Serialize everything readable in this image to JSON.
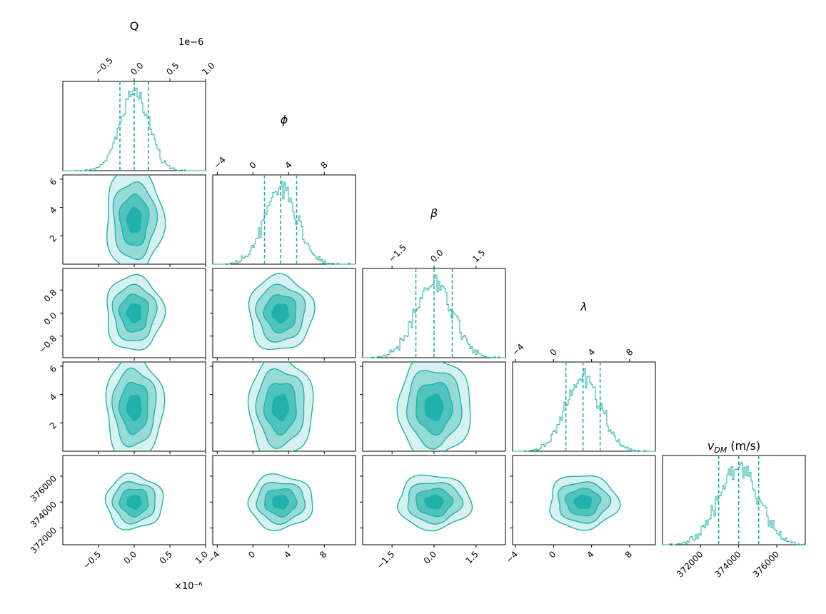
{
  "chart_data": {
    "type": "corner",
    "color": "#20b2aa",
    "parameters": [
      {
        "key": "Q",
        "title_text": "Q",
        "title_sub": "",
        "title_suffix": "",
        "title_italic": false,
        "range": [
          -1.0,
          1.0
        ],
        "ticks": [
          -0.5,
          0.0,
          0.5,
          1.0
        ],
        "tick_labels": [
          "−0.5",
          "0.0",
          "0.5",
          "1.0"
        ],
        "mean": 0.0,
        "sd": 0.2,
        "quantiles": [
          -0.2,
          0.0,
          0.2
        ],
        "offset_top": "1e−6",
        "offset_bottom": "×10⁻⁶"
      },
      {
        "key": "phi",
        "title_text": "ϕ",
        "title_sub": "",
        "title_suffix": "",
        "title_italic": true,
        "range": [
          -4.5,
          11.5
        ],
        "ticks": [
          -4,
          0,
          4,
          8
        ],
        "tick_labels": [
          "−4",
          "0",
          "4",
          "8"
        ],
        "mean": 3.1,
        "sd": 1.8,
        "quantiles": [
          1.3,
          3.1,
          4.9
        ]
      },
      {
        "key": "beta",
        "title_text": "β",
        "title_sub": "",
        "title_suffix": "",
        "title_italic": true,
        "range": [
          -2.55,
          2.55
        ],
        "ticks": [
          -1.5,
          0.0,
          1.5
        ],
        "tick_labels": [
          "−1.5",
          "0.0",
          "1.5"
        ],
        "mean": 0.0,
        "sd": 0.65,
        "quantiles": [
          -0.65,
          0.0,
          0.65
        ]
      },
      {
        "key": "lambda",
        "title_text": "λ",
        "title_sub": "",
        "title_suffix": "",
        "title_italic": true,
        "range": [
          -4.3,
          10.7
        ],
        "ticks": [
          -4,
          0,
          4,
          8
        ],
        "tick_labels": [
          "−4",
          "0",
          "4",
          "8"
        ],
        "mean": 3.1,
        "sd": 1.8,
        "quantiles": [
          1.3,
          3.1,
          4.9
        ]
      },
      {
        "key": "vdm",
        "title_text": "v",
        "title_sub": "DM",
        "title_suffix": " (m/s)",
        "title_italic": true,
        "range": [
          370000,
          377500
        ],
        "ticks": [
          372000,
          374000,
          376000
        ],
        "tick_labels": [
          "372000",
          "374000",
          "376000"
        ],
        "mean": 374000,
        "sd": 1050,
        "quantiles": [
          372950,
          374000,
          375050
        ]
      }
    ],
    "y_axis_labels": {
      "phi": {
        "ticks": [
          2,
          4,
          6
        ],
        "tick_labels": [
          "2",
          "4",
          "6"
        ],
        "range": [
          0.0,
          6.3
        ]
      },
      "beta": {
        "ticks": [
          -0.8,
          0.0,
          0.8
        ],
        "tick_labels": [
          "−0.8",
          "0.0",
          "0.8"
        ],
        "range": [
          -1.55,
          1.55
        ]
      },
      "lambda": {
        "ticks": [
          2,
          4,
          6
        ],
        "tick_labels": [
          "2",
          "4",
          "6"
        ],
        "range": [
          0.0,
          6.3
        ]
      },
      "vdm": {
        "ticks": [
          372000,
          374000,
          376000
        ],
        "tick_labels": [
          "372000",
          "374000",
          "376000"
        ],
        "range": [
          370700,
          377600
        ]
      }
    },
    "contour_levels_sigma": [
      0.5,
      1.0,
      1.5,
      2.0
    ],
    "contour_fill_opacity": [
      1.0,
      0.6,
      0.35,
      0.18
    ],
    "histogram": "step, unfilled",
    "grid": false,
    "legend": "none"
  }
}
